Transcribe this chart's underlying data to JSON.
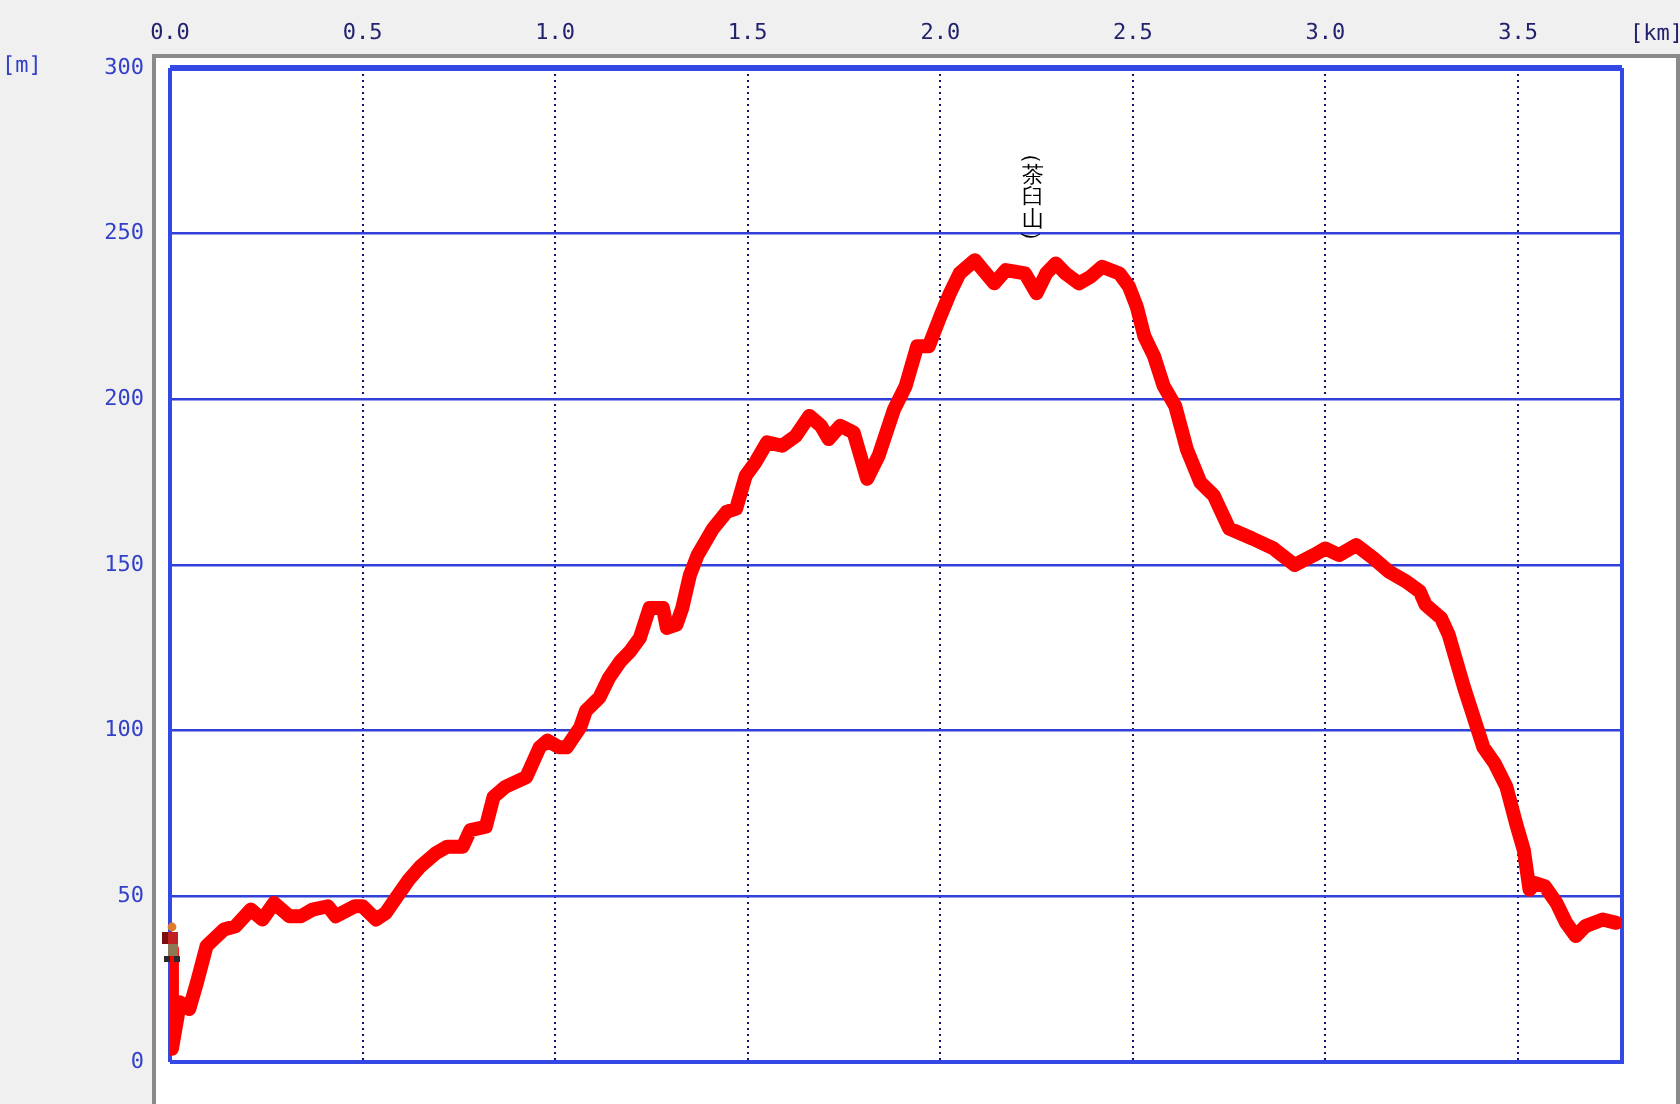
{
  "chart_data": {
    "type": "line",
    "xlabel": "[km]",
    "ylabel": "[m]",
    "x": [
      0,
      0.005,
      0.026,
      0.05,
      0.07,
      0.095,
      0.14,
      0.17,
      0.21,
      0.24,
      0.27,
      0.31,
      0.34,
      0.37,
      0.41,
      0.43,
      0.48,
      0.5,
      0.535,
      0.56,
      0.59,
      0.62,
      0.65,
      0.69,
      0.72,
      0.76,
      0.78,
      0.82,
      0.84,
      0.87,
      0.925,
      0.96,
      0.98,
      1.01,
      1.03,
      1.065,
      1.08,
      1.115,
      1.14,
      1.17,
      1.195,
      1.22,
      1.245,
      1.28,
      1.29,
      1.315,
      1.33,
      1.35,
      1.37,
      1.41,
      1.445,
      1.47,
      1.495,
      1.52,
      1.55,
      1.59,
      1.625,
      1.66,
      1.69,
      1.71,
      1.74,
      1.775,
      1.81,
      1.84,
      1.88,
      1.91,
      1.94,
      1.97,
      2.0,
      2.025,
      2.05,
      2.09,
      2.14,
      2.17,
      2.22,
      2.25,
      2.275,
      2.3,
      2.325,
      2.36,
      2.39,
      2.42,
      2.465,
      2.49,
      2.51,
      2.53,
      2.555,
      2.58,
      2.61,
      2.64,
      2.675,
      2.71,
      2.75,
      2.81,
      2.865,
      2.92,
      2.97,
      3.0,
      3.035,
      3.08,
      3.125,
      3.165,
      3.21,
      3.245,
      3.26,
      3.3,
      3.32,
      3.34,
      3.36,
      3.385,
      3.41,
      3.44,
      3.47,
      3.495,
      3.515,
      3.53,
      3.545,
      3.57,
      3.6,
      3.625,
      3.65,
      3.675,
      3.72,
      3.755
    ],
    "series": [
      {
        "color": "#ff0000",
        "values": [
          34,
          4,
          18,
          16,
          24,
          35,
          40,
          41,
          46,
          43,
          48,
          44,
          44,
          46,
          47,
          44,
          47,
          47,
          43,
          45,
          50,
          55,
          59,
          63,
          65,
          65,
          70,
          71,
          80,
          83,
          86,
          95,
          97,
          95,
          95,
          101,
          106,
          110,
          116,
          121,
          124,
          128,
          137,
          137,
          131,
          132,
          137,
          147,
          153,
          161,
          166,
          167,
          177,
          181,
          187,
          186,
          189,
          195,
          192,
          188,
          192,
          190,
          176,
          183,
          197,
          204,
          216,
          216,
          225,
          232,
          238,
          242,
          235,
          239,
          238,
          232,
          238,
          241,
          238,
          235,
          237,
          240,
          238,
          234,
          228,
          219,
          213,
          204,
          198,
          185,
          175,
          171,
          161,
          158,
          155,
          150,
          153,
          155,
          153,
          156,
          152,
          148,
          145,
          142,
          138,
          134,
          129,
          121,
          113,
          104,
          95,
          90,
          83,
          72,
          64,
          52,
          54,
          53,
          48,
          42,
          38,
          41,
          43,
          42
        ]
      }
    ],
    "xlim": [
      0,
      3.77
    ],
    "ylim": [
      0,
      300
    ],
    "xticks": [
      {
        "value": 0,
        "label": "0.0"
      },
      0.5,
      {
        "value": 1,
        "label": "1.0"
      },
      1.5,
      {
        "value": 2,
        "label": "2.0"
      },
      2.5,
      {
        "value": 3,
        "label": "3.0"
      },
      3.5
    ],
    "yticks": [
      0,
      50,
      100,
      150,
      200,
      250,
      300
    ],
    "grid": true,
    "marker": "none",
    "line_style": "solid",
    "annotations": [
      {
        "text": "（茶臼山）",
        "x": 2.24,
        "y": 240
      }
    ]
  }
}
